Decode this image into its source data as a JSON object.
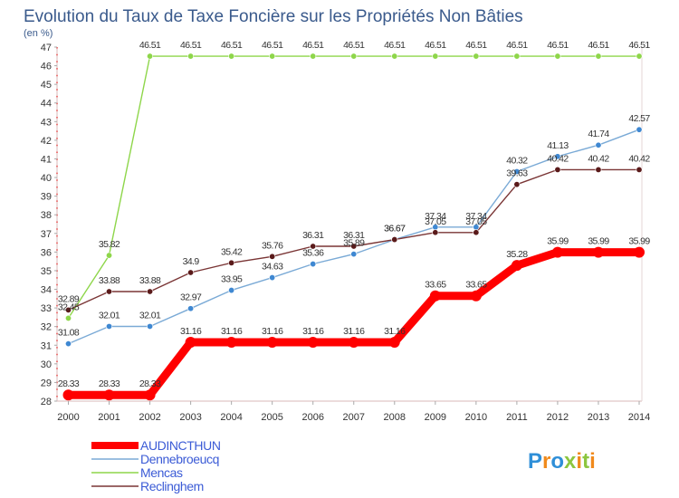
{
  "chart_data": {
    "type": "line",
    "title": "Evolution du Taux de Taxe Foncière sur les Propriétés Non Bâties",
    "unit_label": "(en %)",
    "xlabel": "",
    "ylabel": "",
    "categories": [
      "2000",
      "2001",
      "2002",
      "2003",
      "2004",
      "2005",
      "2006",
      "2007",
      "2008",
      "2009",
      "2010",
      "2011",
      "2012",
      "2013",
      "2014"
    ],
    "ylim": [
      28,
      47
    ],
    "yticks": [
      28,
      29,
      30,
      31,
      32,
      33,
      34,
      35,
      36,
      37,
      38,
      39,
      40,
      41,
      42,
      43,
      44,
      45,
      46,
      47
    ],
    "grid": false,
    "series": [
      {
        "name": "Mencas",
        "color": "#8ed64a",
        "point_color": "#8ed64a",
        "values": [
          32.45,
          35.82,
          46.51,
          46.51,
          46.51,
          46.51,
          46.51,
          46.51,
          46.51,
          46.51,
          46.51,
          46.51,
          46.51,
          46.51,
          46.51
        ],
        "labels": [
          "32.45",
          "35.82",
          "46.51",
          "46.51",
          "46.51",
          "46.51",
          "46.51",
          "46.51",
          "46.51",
          "46.51",
          "46.51",
          "46.51",
          "46.51",
          "46.51",
          "46.51"
        ]
      },
      {
        "name": "Dennebroeucq",
        "color": "#7aaad6",
        "point_color": "#3f88d2",
        "values": [
          31.08,
          32.01,
          32.01,
          32.97,
          33.95,
          34.63,
          35.36,
          35.89,
          36.67,
          37.34,
          37.34,
          40.32,
          41.13,
          41.74,
          42.57
        ],
        "labels": [
          "31.08",
          "32.01",
          "32.01",
          "32.97",
          "33.95",
          "34.63",
          "35.36",
          "35.89",
          "36.67",
          "37.34",
          "37.34",
          "40.32",
          "41.13",
          "41.74",
          "42.57"
        ]
      },
      {
        "name": "Reclinghem",
        "color": "#7a3535",
        "point_color": "#5a1a1a",
        "values": [
          32.89,
          33.88,
          33.88,
          34.9,
          35.42,
          35.76,
          36.31,
          36.31,
          36.67,
          37.05,
          37.05,
          39.63,
          40.42,
          40.42,
          40.42
        ],
        "labels": [
          "32.89",
          "33.88",
          "33.88",
          "34.9",
          "35.42",
          "35.76",
          "36.31",
          "36.31",
          "36.67",
          "37.05",
          "37.05",
          "39.63",
          "40.42",
          "40.42",
          "40.42"
        ]
      },
      {
        "name": "AUDINCTHUN",
        "color": "#ff0000",
        "point_color": "#ff0000",
        "values": [
          28.33,
          28.33,
          28.33,
          31.16,
          31.16,
          31.16,
          31.16,
          31.16,
          31.16,
          33.65,
          33.65,
          35.28,
          35.99,
          35.99,
          35.99
        ],
        "labels": [
          "28.33",
          "28.33",
          "28.33",
          "31.16",
          "31.16",
          "31.16",
          "31.16",
          "31.16",
          "31.16",
          "33.65",
          "33.65",
          "35.28",
          "35.99",
          "35.99",
          "35.99"
        ]
      }
    ],
    "legend": {
      "placement": "bottom-left",
      "order": [
        "AUDINCTHUN",
        "Dennebroeucq",
        "Mencas",
        "Reclinghem"
      ]
    }
  },
  "logo": {
    "text": "Proxiti"
  }
}
